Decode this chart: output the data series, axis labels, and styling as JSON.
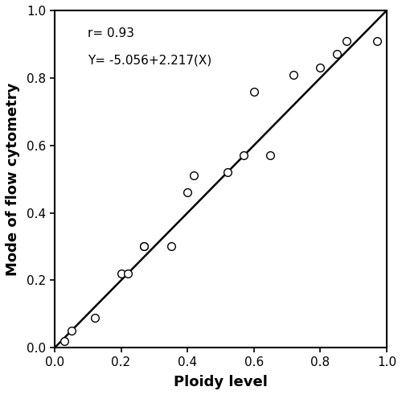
{
  "x_data": [
    0.03,
    0.05,
    0.12,
    0.2,
    0.22,
    0.27,
    0.27,
    0.35,
    0.4,
    0.42,
    0.52,
    0.57,
    0.6,
    0.65,
    0.72,
    0.8,
    0.85,
    0.88,
    0.97
  ],
  "y_data": [
    0.02,
    0.05,
    0.09,
    0.22,
    0.22,
    0.3,
    0.3,
    0.3,
    0.46,
    0.51,
    0.52,
    0.57,
    0.76,
    0.57,
    0.81,
    0.83,
    0.87,
    0.91,
    0.91
  ],
  "xlabel": "Ploidy level",
  "ylabel": "Mode of flow cytometry",
  "annotation_line1": "r= 0.93",
  "annotation_line2": "Y= -5.056+2.217(X)",
  "xlim": [
    0.0,
    1.0
  ],
  "ylim": [
    0.0,
    1.0
  ],
  "xticks": [
    0.0,
    0.2,
    0.4,
    0.6,
    0.8,
    1.0
  ],
  "yticks": [
    0.0,
    0.2,
    0.4,
    0.6,
    0.8,
    1.0
  ],
  "marker_color": "white",
  "marker_edge_color": "black",
  "marker_size": 7,
  "line_color": "black",
  "line_width": 1.8,
  "bg_color": "white",
  "fig_width": 5.0,
  "fig_height": 4.91,
  "dpi": 100
}
